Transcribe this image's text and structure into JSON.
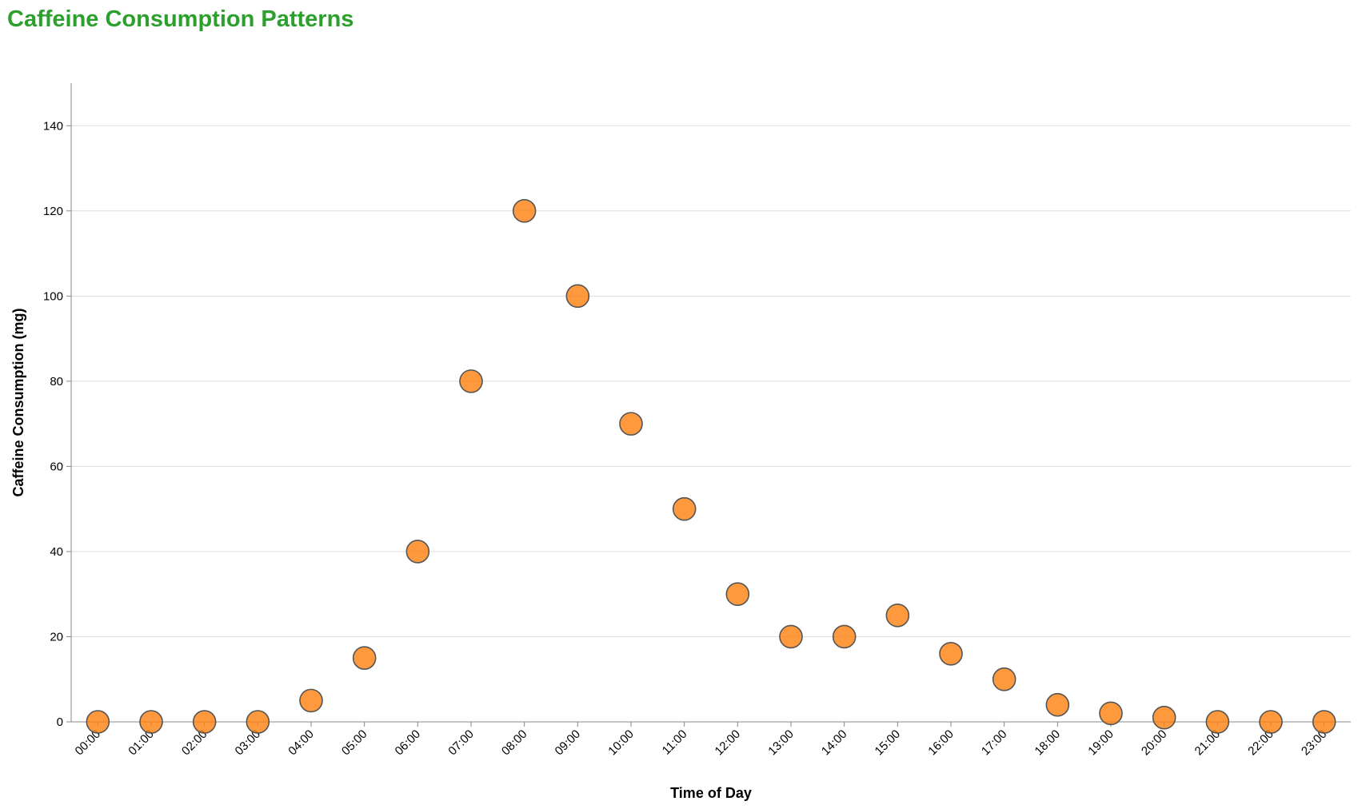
{
  "chart_data": {
    "type": "scatter",
    "title": "Caffeine Consumption Patterns",
    "xlabel": "Time of Day",
    "ylabel": "Caffeine Consumption (mg)",
    "categories": [
      "00:00",
      "01:00",
      "02:00",
      "03:00",
      "04:00",
      "05:00",
      "06:00",
      "07:00",
      "08:00",
      "09:00",
      "10:00",
      "11:00",
      "12:00",
      "13:00",
      "14:00",
      "15:00",
      "16:00",
      "17:00",
      "18:00",
      "19:00",
      "20:00",
      "21:00",
      "22:00",
      "23:00"
    ],
    "values": [
      0,
      0,
      0,
      0,
      5,
      15,
      40,
      80,
      120,
      100,
      70,
      50,
      30,
      20,
      20,
      25,
      16,
      10,
      4,
      2,
      1,
      0,
      0,
      0
    ],
    "ylim": [
      0,
      150
    ],
    "yticks": [
      0,
      20,
      40,
      60,
      80,
      100,
      120,
      140
    ],
    "grid": "horizontal",
    "colors": {
      "title": "#2ca02c",
      "point_fill": "#ff7f0e",
      "point_stroke": "#555555",
      "grid": "#dddddd",
      "axis": "#888888"
    }
  }
}
